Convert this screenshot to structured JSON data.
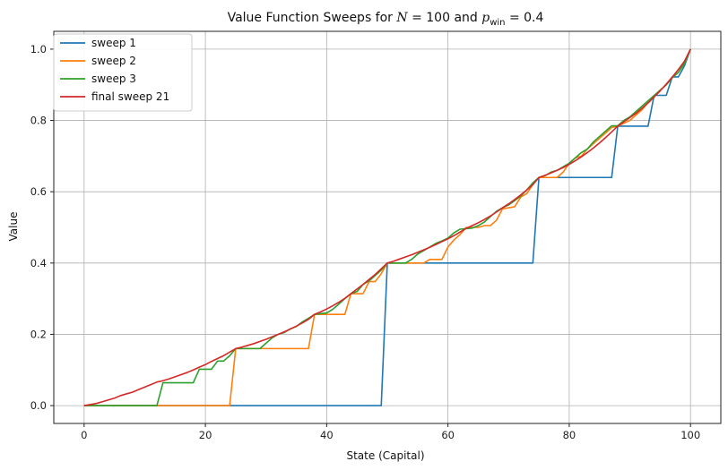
{
  "chart_data": {
    "type": "line",
    "title": "Value Function Sweeps for N = 100 and p_win = 0.4",
    "title_parts": {
      "prefix": "Value Function Sweeps for ",
      "n_var": "N",
      "n_eq": " = 100 and ",
      "p_var": "p",
      "p_sub": "win",
      "p_eq": " = 0.4"
    },
    "xlabel": "State (Capital)",
    "ylabel": "Value",
    "xlim": [
      -5,
      105
    ],
    "ylim": [
      -0.05,
      1.05
    ],
    "xticks": [
      0,
      20,
      40,
      60,
      80,
      100
    ],
    "xtick_labels": [
      "0",
      "20",
      "40",
      "60",
      "80",
      "100"
    ],
    "yticks": [
      0.0,
      0.2,
      0.4,
      0.6,
      0.8,
      1.0
    ],
    "ytick_labels": [
      "0.0",
      "0.2",
      "0.4",
      "0.6",
      "0.8",
      "1.0"
    ],
    "grid": true,
    "legend_position": "top-left",
    "series": [
      {
        "name": "sweep 1",
        "color": "#1f77b4",
        "points": [
          [
            0,
            0
          ],
          [
            49,
            0
          ],
          [
            50,
            0.4
          ],
          [
            74,
            0.4
          ],
          [
            75,
            0.64
          ],
          [
            87,
            0.64
          ],
          [
            88,
            0.784
          ],
          [
            93,
            0.784
          ],
          [
            94,
            0.8704
          ],
          [
            96,
            0.8704
          ],
          [
            97,
            0.9222
          ],
          [
            98,
            0.9222
          ],
          [
            99,
            0.953
          ],
          [
            100,
            1.0
          ]
        ]
      },
      {
        "name": "sweep 2",
        "color": "#ff7f0e",
        "points": [
          [
            0,
            0
          ],
          [
            24,
            0
          ],
          [
            25,
            0.16
          ],
          [
            37,
            0.16
          ],
          [
            38,
            0.256
          ],
          [
            43,
            0.256
          ],
          [
            44,
            0.314
          ],
          [
            46,
            0.314
          ],
          [
            47,
            0.348
          ],
          [
            48,
            0.348
          ],
          [
            49,
            0.37
          ],
          [
            50,
            0.4
          ],
          [
            56,
            0.4
          ],
          [
            57,
            0.41
          ],
          [
            59,
            0.41
          ],
          [
            60,
            0.445
          ],
          [
            61,
            0.465
          ],
          [
            62,
            0.48
          ],
          [
            63,
            0.5
          ],
          [
            65,
            0.5
          ],
          [
            66,
            0.505
          ],
          [
            67,
            0.505
          ],
          [
            68,
            0.52
          ],
          [
            69,
            0.552
          ],
          [
            71,
            0.558
          ],
          [
            72,
            0.585
          ],
          [
            73,
            0.595
          ],
          [
            74,
            0.62
          ],
          [
            75,
            0.64
          ],
          [
            78,
            0.64
          ],
          [
            79,
            0.655
          ],
          [
            80,
            0.68
          ],
          [
            81,
            0.695
          ],
          [
            82,
            0.7
          ],
          [
            83,
            0.72
          ],
          [
            84,
            0.735
          ],
          [
            85,
            0.75
          ],
          [
            86,
            0.765
          ],
          [
            87,
            0.78
          ],
          [
            88,
            0.784
          ],
          [
            90,
            0.8
          ],
          [
            91,
            0.815
          ],
          [
            92,
            0.83
          ],
          [
            93,
            0.85
          ],
          [
            94,
            0.87
          ],
          [
            95,
            0.885
          ],
          [
            96,
            0.9
          ],
          [
            97,
            0.92
          ],
          [
            98,
            0.935
          ],
          [
            99,
            0.96
          ],
          [
            100,
            1.0
          ]
        ]
      },
      {
        "name": "sweep 3",
        "color": "#2ca02c",
        "points": [
          [
            0,
            0
          ],
          [
            12,
            0
          ],
          [
            13,
            0.064
          ],
          [
            18,
            0.064
          ],
          [
            19,
            0.102
          ],
          [
            21,
            0.102
          ],
          [
            22,
            0.125
          ],
          [
            23,
            0.125
          ],
          [
            24,
            0.14
          ],
          [
            25,
            0.16
          ],
          [
            29,
            0.16
          ],
          [
            30,
            0.175
          ],
          [
            31,
            0.19
          ],
          [
            32,
            0.2
          ],
          [
            33,
            0.205
          ],
          [
            34,
            0.215
          ],
          [
            35,
            0.222
          ],
          [
            36,
            0.235
          ],
          [
            37,
            0.245
          ],
          [
            38,
            0.256
          ],
          [
            40,
            0.26
          ],
          [
            41,
            0.27
          ],
          [
            42,
            0.285
          ],
          [
            43,
            0.3
          ],
          [
            44,
            0.314
          ],
          [
            45,
            0.32
          ],
          [
            46,
            0.34
          ],
          [
            47,
            0.35
          ],
          [
            48,
            0.365
          ],
          [
            49,
            0.38
          ],
          [
            50,
            0.4
          ],
          [
            53,
            0.4
          ],
          [
            54,
            0.41
          ],
          [
            55,
            0.425
          ],
          [
            56,
            0.435
          ],
          [
            57,
            0.445
          ],
          [
            58,
            0.455
          ],
          [
            59,
            0.462
          ],
          [
            60,
            0.47
          ],
          [
            61,
            0.485
          ],
          [
            62,
            0.495
          ],
          [
            64,
            0.498
          ],
          [
            65,
            0.505
          ],
          [
            66,
            0.515
          ],
          [
            67,
            0.53
          ],
          [
            68,
            0.545
          ],
          [
            69,
            0.555
          ],
          [
            70,
            0.563
          ],
          [
            71,
            0.575
          ],
          [
            72,
            0.588
          ],
          [
            73,
            0.605
          ],
          [
            74,
            0.625
          ],
          [
            75,
            0.64
          ],
          [
            76,
            0.645
          ],
          [
            77,
            0.655
          ],
          [
            78,
            0.66
          ],
          [
            79,
            0.67
          ],
          [
            80,
            0.68
          ],
          [
            81,
            0.695
          ],
          [
            82,
            0.71
          ],
          [
            83,
            0.72
          ],
          [
            84,
            0.74
          ],
          [
            85,
            0.755
          ],
          [
            86,
            0.77
          ],
          [
            87,
            0.785
          ],
          [
            88,
            0.785
          ],
          [
            89,
            0.8
          ],
          [
            90,
            0.81
          ],
          [
            91,
            0.825
          ],
          [
            92,
            0.84
          ],
          [
            93,
            0.855
          ],
          [
            94,
            0.87
          ],
          [
            95,
            0.885
          ],
          [
            96,
            0.9
          ],
          [
            97,
            0.92
          ],
          [
            98,
            0.935
          ],
          [
            99,
            0.96
          ],
          [
            100,
            1.0
          ]
        ]
      },
      {
        "name": "final sweep 21",
        "color": "#d62728",
        "points": [
          [
            0,
            0
          ],
          [
            1,
            0.003
          ],
          [
            2,
            0.006
          ],
          [
            3,
            0.011
          ],
          [
            4,
            0.016
          ],
          [
            5,
            0.021
          ],
          [
            6,
            0.028
          ],
          [
            7,
            0.033
          ],
          [
            8,
            0.038
          ],
          [
            9,
            0.045
          ],
          [
            10,
            0.052
          ],
          [
            11,
            0.059
          ],
          [
            12,
            0.066
          ],
          [
            13,
            0.07
          ],
          [
            14,
            0.075
          ],
          [
            15,
            0.081
          ],
          [
            16,
            0.087
          ],
          [
            17,
            0.093
          ],
          [
            18,
            0.1
          ],
          [
            19,
            0.108
          ],
          [
            20,
            0.115
          ],
          [
            21,
            0.124
          ],
          [
            22,
            0.132
          ],
          [
            23,
            0.14
          ],
          [
            24,
            0.15
          ],
          [
            25,
            0.16
          ],
          [
            26,
            0.164
          ],
          [
            27,
            0.169
          ],
          [
            28,
            0.174
          ],
          [
            29,
            0.18
          ],
          [
            30,
            0.186
          ],
          [
            31,
            0.193
          ],
          [
            32,
            0.2
          ],
          [
            33,
            0.207
          ],
          [
            34,
            0.215
          ],
          [
            35,
            0.223
          ],
          [
            36,
            0.232
          ],
          [
            37,
            0.242
          ],
          [
            38,
            0.256
          ],
          [
            39,
            0.263
          ],
          [
            40,
            0.271
          ],
          [
            41,
            0.28
          ],
          [
            42,
            0.29
          ],
          [
            43,
            0.301
          ],
          [
            44,
            0.314
          ],
          [
            45,
            0.327
          ],
          [
            46,
            0.34
          ],
          [
            47,
            0.354
          ],
          [
            48,
            0.368
          ],
          [
            49,
            0.384
          ],
          [
            50,
            0.4
          ],
          [
            51,
            0.405
          ],
          [
            52,
            0.411
          ],
          [
            53,
            0.417
          ],
          [
            54,
            0.423
          ],
          [
            55,
            0.43
          ],
          [
            56,
            0.437
          ],
          [
            57,
            0.444
          ],
          [
            58,
            0.452
          ],
          [
            59,
            0.46
          ],
          [
            60,
            0.468
          ],
          [
            61,
            0.477
          ],
          [
            62,
            0.487
          ],
          [
            63,
            0.497
          ],
          [
            64,
            0.505
          ],
          [
            65,
            0.513
          ],
          [
            66,
            0.522
          ],
          [
            67,
            0.532
          ],
          [
            68,
            0.543
          ],
          [
            69,
            0.555
          ],
          [
            70,
            0.566
          ],
          [
            71,
            0.578
          ],
          [
            72,
            0.591
          ],
          [
            73,
            0.605
          ],
          [
            74,
            0.62
          ],
          [
            75,
            0.64
          ],
          [
            76,
            0.646
          ],
          [
            77,
            0.653
          ],
          [
            78,
            0.66
          ],
          [
            79,
            0.668
          ],
          [
            80,
            0.677
          ],
          [
            81,
            0.687
          ],
          [
            82,
            0.698
          ],
          [
            83,
            0.71
          ],
          [
            84,
            0.723
          ],
          [
            85,
            0.737
          ],
          [
            86,
            0.752
          ],
          [
            87,
            0.768
          ],
          [
            88,
            0.784
          ],
          [
            89,
            0.796
          ],
          [
            90,
            0.808
          ],
          [
            91,
            0.82
          ],
          [
            92,
            0.834
          ],
          [
            93,
            0.849
          ],
          [
            94,
            0.866
          ],
          [
            95,
            0.883
          ],
          [
            96,
            0.902
          ],
          [
            97,
            0.922
          ],
          [
            98,
            0.943
          ],
          [
            99,
            0.966
          ],
          [
            100,
            1.0
          ]
        ]
      }
    ]
  }
}
